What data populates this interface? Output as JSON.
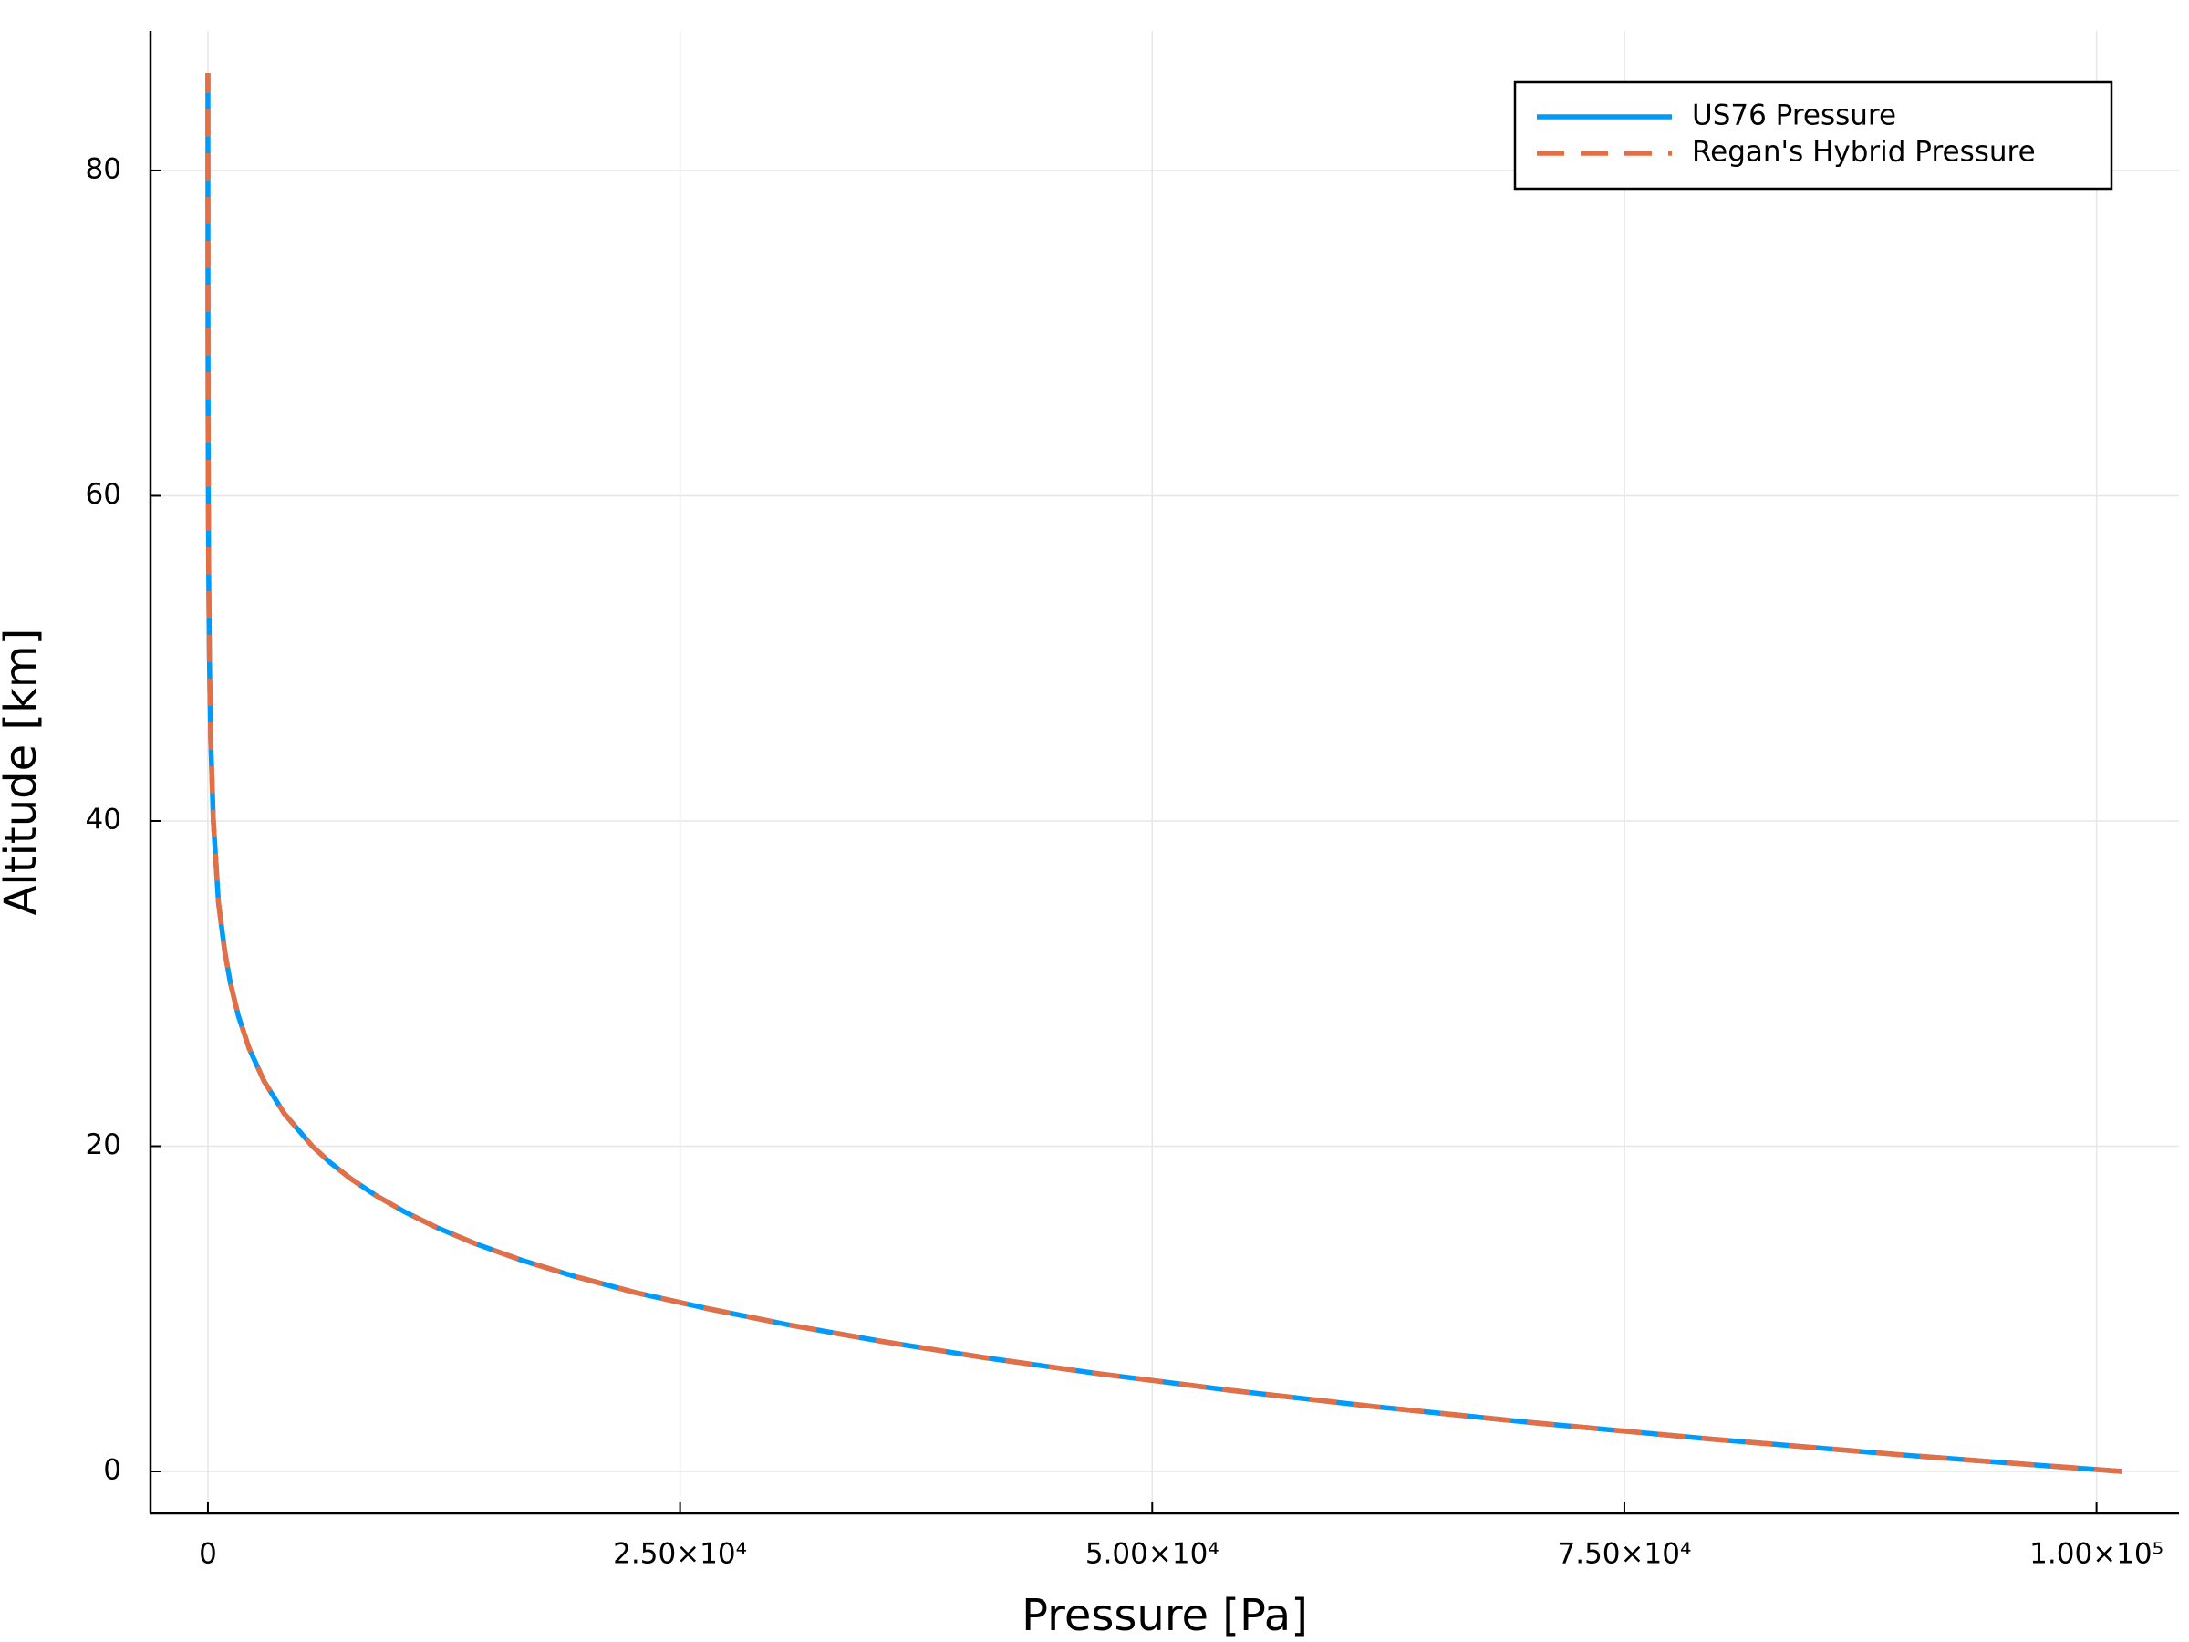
{
  "chart_data": {
    "type": "line",
    "xlabel": "Pressure [Pa]",
    "ylabel": "Altitude [km]",
    "series": [
      {
        "name": "US76 Pressure",
        "color": "#009af9",
        "style": "solid",
        "x": [
          101325,
          89876,
          79501,
          70121,
          61660,
          54048,
          47217,
          41105,
          35651,
          30800,
          26500,
          22632,
          19399,
          16580,
          14170,
          12111,
          10353,
          8850,
          7565,
          6467,
          5529,
          4047,
          2972,
          2188,
          1616,
          1197,
          889,
          558,
          287,
          149,
          80,
          43,
          22,
          11,
          5,
          2.4,
          1.05,
          0.37
        ],
        "values": [
          0,
          1,
          2,
          3,
          4,
          5,
          6,
          7,
          8,
          9,
          10,
          11,
          12,
          13,
          14,
          15,
          16,
          17,
          18,
          19,
          20,
          22,
          24,
          26,
          28,
          30,
          32,
          35,
          40,
          45,
          50,
          55,
          60,
          65,
          70,
          75,
          80,
          86
        ]
      },
      {
        "name": "Regan's Hybrid Pressure",
        "color": "#e26f46",
        "style": "dash",
        "x": [
          101325,
          89876,
          79501,
          70121,
          61660,
          54048,
          47217,
          41105,
          35651,
          30800,
          26500,
          22632,
          19399,
          16580,
          14170,
          12111,
          10353,
          8850,
          7565,
          6467,
          5529,
          4047,
          2972,
          2188,
          1616,
          1197,
          889,
          558,
          287,
          149,
          80,
          43,
          22,
          11,
          5,
          2.4,
          1.05,
          0.37
        ],
        "values": [
          0,
          1,
          2,
          3,
          4,
          5,
          6,
          7,
          8,
          9,
          10,
          11,
          12,
          13,
          14,
          15,
          16,
          17,
          18,
          19,
          20,
          22,
          24,
          26,
          28,
          30,
          32,
          35,
          40,
          45,
          50,
          55,
          60,
          65,
          70,
          75,
          80,
          86
        ]
      }
    ],
    "xlim": [
      -3040,
      104365
    ],
    "ylim": [
      -2.58,
      88.58
    ],
    "xticks": [
      0,
      {
        "value": 25000,
        "label": "2.50×10⁴"
      },
      {
        "value": 50000,
        "label": "5.00×10⁴"
      },
      {
        "value": 75000,
        "label": "7.50×10⁴"
      },
      {
        "value": 100000,
        "label": "1.00×10⁵"
      }
    ],
    "yticks": [
      0,
      20,
      40,
      60,
      80
    ],
    "grid": true,
    "legend": "top right"
  }
}
